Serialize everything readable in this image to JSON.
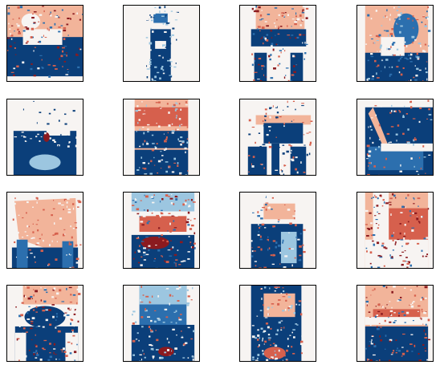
{
  "figure": {
    "rows": 4,
    "cols": 4,
    "colormap": {
      "name": "RdBu",
      "colors": {
        "deep_blue": "#0b3f7a",
        "blue": "#2c6fae",
        "light_blue": "#9cc6e0",
        "background": "#f7f4f2",
        "light_red": "#f2b49a",
        "red": "#d6604d",
        "deep_red": "#8b1a1f"
      }
    },
    "panels": [
      {
        "id": "r1c1",
        "subject": "chair-saliency-map"
      },
      {
        "id": "r1c2",
        "subject": "chair-saliency-map"
      },
      {
        "id": "r1c3",
        "subject": "chair-saliency-map"
      },
      {
        "id": "r1c4",
        "subject": "chair-saliency-map"
      },
      {
        "id": "r2c1",
        "subject": "chair-saliency-map"
      },
      {
        "id": "r2c2",
        "subject": "chair-saliency-map"
      },
      {
        "id": "r2c3",
        "subject": "chair-saliency-map"
      },
      {
        "id": "r2c4",
        "subject": "chair-saliency-map"
      },
      {
        "id": "r3c1",
        "subject": "chair-saliency-map"
      },
      {
        "id": "r3c2",
        "subject": "chair-saliency-map"
      },
      {
        "id": "r3c3",
        "subject": "chair-saliency-map"
      },
      {
        "id": "r3c4",
        "subject": "chair-saliency-map"
      },
      {
        "id": "r4c1",
        "subject": "chair-saliency-map"
      },
      {
        "id": "r4c2",
        "subject": "chair-saliency-map"
      },
      {
        "id": "r4c3",
        "subject": "chair-saliency-map"
      },
      {
        "id": "r4c4",
        "subject": "chair-saliency-map"
      }
    ]
  }
}
